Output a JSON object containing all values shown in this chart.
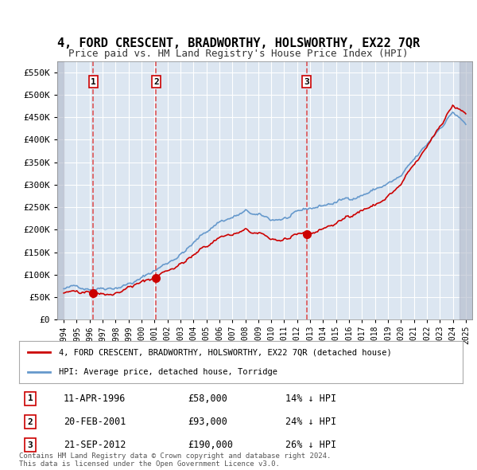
{
  "title": "4, FORD CRESCENT, BRADWORTHY, HOLSWORTHY, EX22 7QR",
  "subtitle": "Price paid vs. HM Land Registry's House Price Index (HPI)",
  "title_fontsize": 11,
  "subtitle_fontsize": 9,
  "background_color": "#ffffff",
  "plot_bg_color": "#dce6f1",
  "grid_color": "#ffffff",
  "property_color": "#cc0000",
  "hpi_color": "#6699cc",
  "sale_marker_color": "#cc0000",
  "vline_color": "#dd4444",
  "ylim": [
    0,
    575000
  ],
  "yticks": [
    0,
    50000,
    100000,
    150000,
    200000,
    250000,
    300000,
    350000,
    400000,
    450000,
    500000,
    550000
  ],
  "ytick_labels": [
    "£0",
    "£50K",
    "£100K",
    "£150K",
    "£200K",
    "£250K",
    "£300K",
    "£350K",
    "£400K",
    "£450K",
    "£500K",
    "£550K"
  ],
  "xmin": 1993.5,
  "xmax": 2025.5,
  "sales": [
    {
      "date": 1996.27,
      "price": 58000,
      "label": "1"
    },
    {
      "date": 2001.12,
      "price": 93000,
      "label": "2"
    },
    {
      "date": 2012.72,
      "price": 190000,
      "label": "3"
    }
  ],
  "legend_property": "4, FORD CRESCENT, BRADWORTHY, HOLSWORTHY, EX22 7QR (detached house)",
  "legend_hpi": "HPI: Average price, detached house, Torridge",
  "table_rows": [
    {
      "num": "1",
      "date": "11-APR-1996",
      "price": "£58,000",
      "hpi": "14% ↓ HPI"
    },
    {
      "num": "2",
      "date": "20-FEB-2001",
      "price": "£93,000",
      "hpi": "24% ↓ HPI"
    },
    {
      "num": "3",
      "date": "21-SEP-2012",
      "price": "£190,000",
      "hpi": "26% ↓ HPI"
    }
  ],
  "footer": "Contains HM Land Registry data © Crown copyright and database right 2024.\nThis data is licensed under the Open Government Licence v3.0."
}
